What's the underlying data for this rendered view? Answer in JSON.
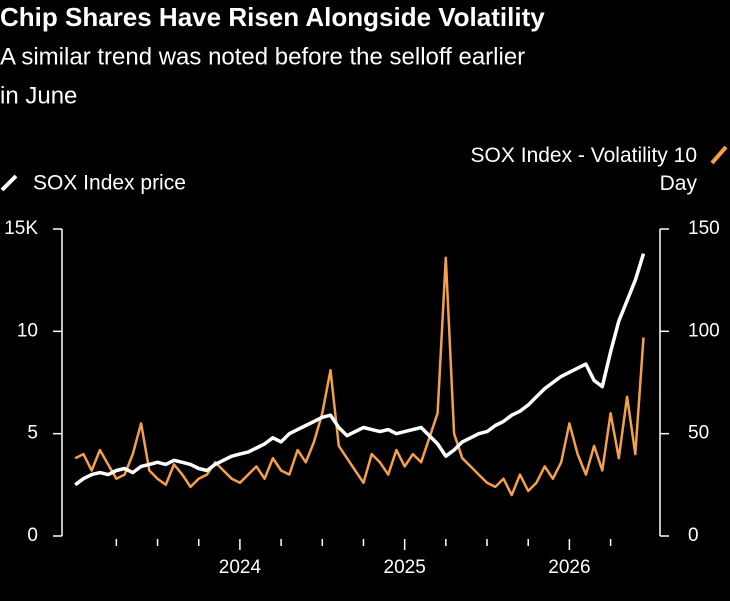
{
  "chart_data": {
    "type": "line",
    "title": "Chip Shares Have Risen Alongside Volatility",
    "subtitle": [
      "A similar trend was noted before the selloff earlier",
      "in June"
    ],
    "x": [
      2023.0,
      2023.05,
      2023.1,
      2023.15,
      2023.2,
      2023.25,
      2023.3,
      2023.35,
      2023.4,
      2023.45,
      2023.5,
      2023.55,
      2023.6,
      2023.65,
      2023.7,
      2023.75,
      2023.8,
      2023.85,
      2023.9,
      2023.95,
      2024.0,
      2024.05,
      2024.1,
      2024.15,
      2024.2,
      2024.25,
      2024.3,
      2024.35,
      2024.4,
      2024.45,
      2024.5,
      2024.55,
      2024.6,
      2024.65,
      2024.7,
      2024.75,
      2024.8,
      2024.85,
      2024.9,
      2024.95,
      2025.0,
      2025.05,
      2025.1,
      2025.15,
      2025.2,
      2025.25,
      2025.3,
      2025.35,
      2025.4,
      2025.45,
      2025.5,
      2025.55,
      2025.6,
      2025.65,
      2025.7,
      2025.75,
      2025.8,
      2025.85,
      2025.9,
      2025.95,
      2026.0,
      2026.05,
      2026.1,
      2026.15,
      2026.2,
      2026.25,
      2026.3,
      2026.35,
      2026.4,
      2026.45
    ],
    "series": [
      {
        "name": "SOX Index - Volatility 10 Day",
        "color": "#f4a04a",
        "axis": "y2",
        "values": [
          38,
          40,
          32,
          42,
          35,
          28,
          30,
          40,
          55,
          32,
          28,
          25,
          35,
          30,
          24,
          28,
          30,
          36,
          32,
          28,
          26,
          30,
          34,
          28,
          38,
          32,
          30,
          42,
          36,
          46,
          60,
          81,
          44,
          38,
          32,
          26,
          40,
          36,
          30,
          42,
          34,
          40,
          36,
          48,
          60,
          136,
          50,
          38,
          34,
          30,
          26,
          24,
          28,
          20,
          30,
          22,
          26,
          34,
          28,
          36,
          55,
          40,
          30,
          44,
          32,
          60,
          38,
          68,
          40,
          97
        ]
      },
      {
        "name": "SOX Index price",
        "color": "#ffffff",
        "values": [
          2500,
          2800,
          3000,
          3100,
          3000,
          3200,
          3300,
          3100,
          3400,
          3500,
          3600,
          3500,
          3700,
          3600,
          3500,
          3300,
          3200,
          3500,
          3700,
          3900,
          4000,
          4100,
          4300,
          4500,
          4800,
          4600,
          5000,
          5200,
          5400,
          5600,
          5800,
          5900,
          5300,
          4900,
          5100,
          5300,
          5200,
          5100,
          5200,
          5000,
          5100,
          5200,
          5300,
          4900,
          4500,
          3900,
          4200,
          4600,
          4800,
          5000,
          5100,
          5400,
          5600,
          5900,
          6100,
          6400,
          6800,
          7200,
          7500,
          7800,
          8000,
          8200,
          8400,
          7600,
          7300,
          9000,
          10500,
          11500,
          12500,
          13800
        ]
      }
    ],
    "xlim": [
      2022.92,
      2026.55
    ],
    "xticks": [
      2024,
      2025,
      2026
    ],
    "xminorticks": [
      2023.25,
      2023.5,
      2023.75,
      2024.25,
      2024.5,
      2024.75,
      2025.25,
      2025.5,
      2025.75,
      2026.25
    ],
    "ylim": [
      0,
      15000
    ],
    "yticks": [
      0,
      {
        "value": 5000,
        "label": "5"
      },
      {
        "value": 10000,
        "label": "10"
      },
      {
        "value": 15000,
        "label": "15K"
      }
    ],
    "y2lim": [
      0,
      150
    ],
    "y2ticks": [
      0,
      50,
      100,
      150
    ]
  }
}
